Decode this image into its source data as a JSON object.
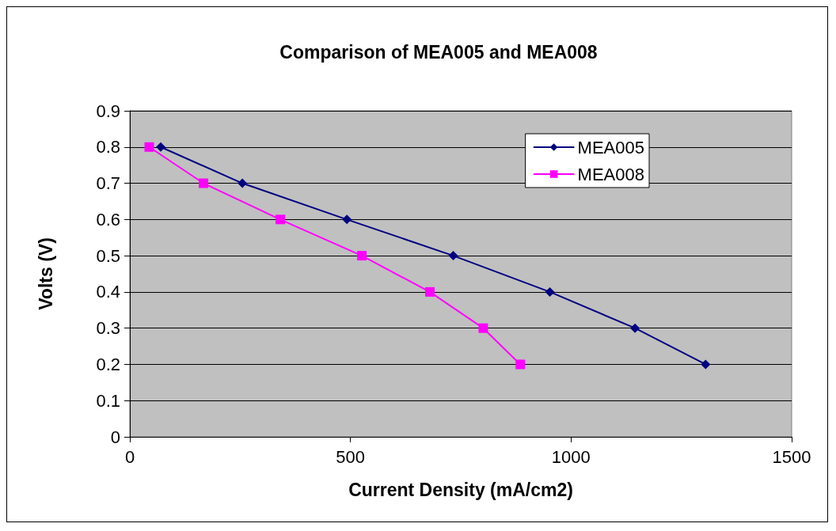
{
  "chart_data": {
    "type": "line",
    "title": "Comparison of MEA005 and MEA008",
    "xlabel": "Current Density (mA/cm2)",
    "ylabel": "Volts (V)",
    "xlim": [
      0,
      1500
    ],
    "xticks": [
      0,
      500,
      1000,
      1500
    ],
    "ylim": [
      0,
      0.9
    ],
    "yticks": [
      0,
      0.1,
      0.2,
      0.3,
      0.4,
      0.5,
      0.6,
      0.7,
      0.8,
      0.9
    ],
    "grid": "y",
    "legend": "top right",
    "series": [
      {
        "name": "MEA005",
        "color": "#000080",
        "marker": "diamond",
        "x": [
          70,
          255,
          492,
          733,
          952,
          1145,
          1305
        ],
        "values": [
          0.8,
          0.7,
          0.6,
          0.5,
          0.4,
          0.3,
          0.2
        ]
      },
      {
        "name": "MEA008",
        "color": "#ff00ff",
        "marker": "square",
        "x": [
          44,
          167,
          341,
          526,
          680,
          801,
          885
        ],
        "values": [
          0.8,
          0.7,
          0.6,
          0.5,
          0.4,
          0.3,
          0.2
        ]
      }
    ]
  }
}
